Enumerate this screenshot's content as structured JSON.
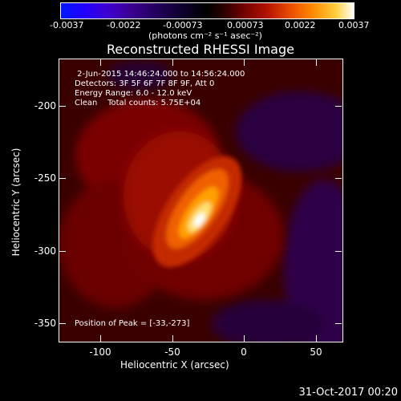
{
  "colorbar": {
    "labels": [
      "-0.0037",
      "-0.0022",
      "-0.00073",
      "0.00073",
      "0.0022",
      "0.0037"
    ],
    "unit": "(photons cm⁻² s⁻¹ asec⁻²)"
  },
  "title": "Reconstructed RHESSI Image",
  "info": {
    "line1": " 2-Jun-2015 14:46:24.000 to 14:56:24.000",
    "line2": "Detectors: 3F 5F 6F 7F 8F 9F, Att 0",
    "line3": "Energy Range: 6.0 - 12.0 keV",
    "line4": "Clean    Total counts: 5.75E+04",
    "peak": "Position of Peak = [-33,-273]"
  },
  "axes": {
    "xlabel": "Heliocentric X (arcsec)",
    "ylabel": "Heliocentric Y (arcsec)",
    "xticks": [
      "-100",
      "-50",
      "0",
      "50"
    ],
    "yticks": [
      "-200",
      "-250",
      "-300",
      "-350"
    ],
    "xlim": [
      -126,
      68
    ],
    "ylim": [
      -362,
      -168
    ]
  },
  "timestamp": "31-Oct-2017 00:20"
}
